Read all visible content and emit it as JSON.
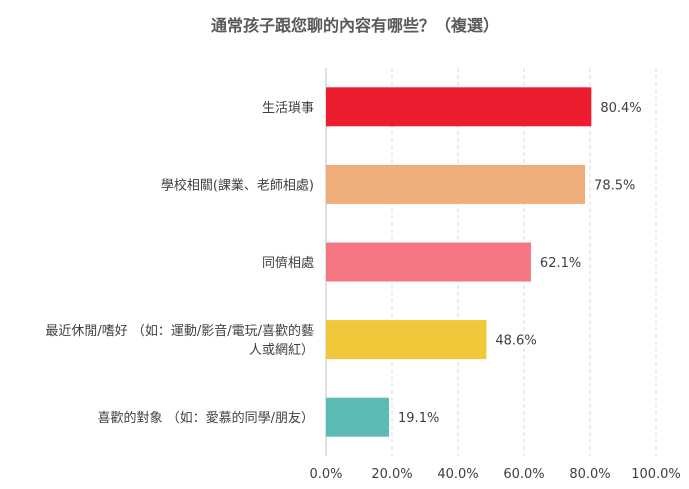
{
  "chart_data": {
    "type": "bar",
    "orientation": "horizontal",
    "title": "通常孩子跟您聊的內容有哪些？（複選）",
    "xlabel": "",
    "ylabel": "",
    "xlim": [
      0,
      100
    ],
    "x_ticks": [
      "0.0%",
      "20.0%",
      "40.0%",
      "60.0%",
      "80.0%",
      "100.0%"
    ],
    "x_tick_values": [
      0,
      20,
      40,
      60,
      80,
      100
    ],
    "grid": true,
    "legend": "none",
    "categories": [
      "生活瑣事",
      "學校相關(課業、老師相處)",
      "同儕相處",
      "最近休閒/嗜好 （如：運動/影音/電玩/喜歡的藝人或網紅）",
      "喜歡的對象 （如：愛慕的同學/朋友）"
    ],
    "category_lines": [
      [
        "生活瑣事"
      ],
      [
        "學校相關(課業、老師相處)"
      ],
      [
        "同儕相處"
      ],
      [
        "最近休閒/嗜好 （如：運動/影音/電玩/喜歡的藝",
        "人或網紅）"
      ],
      [
        "喜歡的對象 （如：愛慕的同學/朋友）"
      ]
    ],
    "values": [
      80.4,
      78.5,
      62.1,
      48.6,
      19.1
    ],
    "value_labels": [
      "80.4%",
      "78.5%",
      "62.1%",
      "48.6%",
      "19.1%"
    ],
    "colors": [
      "#ee1c2f",
      "#f0ad7c",
      "#f47683",
      "#f0c83a",
      "#5ebab4"
    ]
  }
}
